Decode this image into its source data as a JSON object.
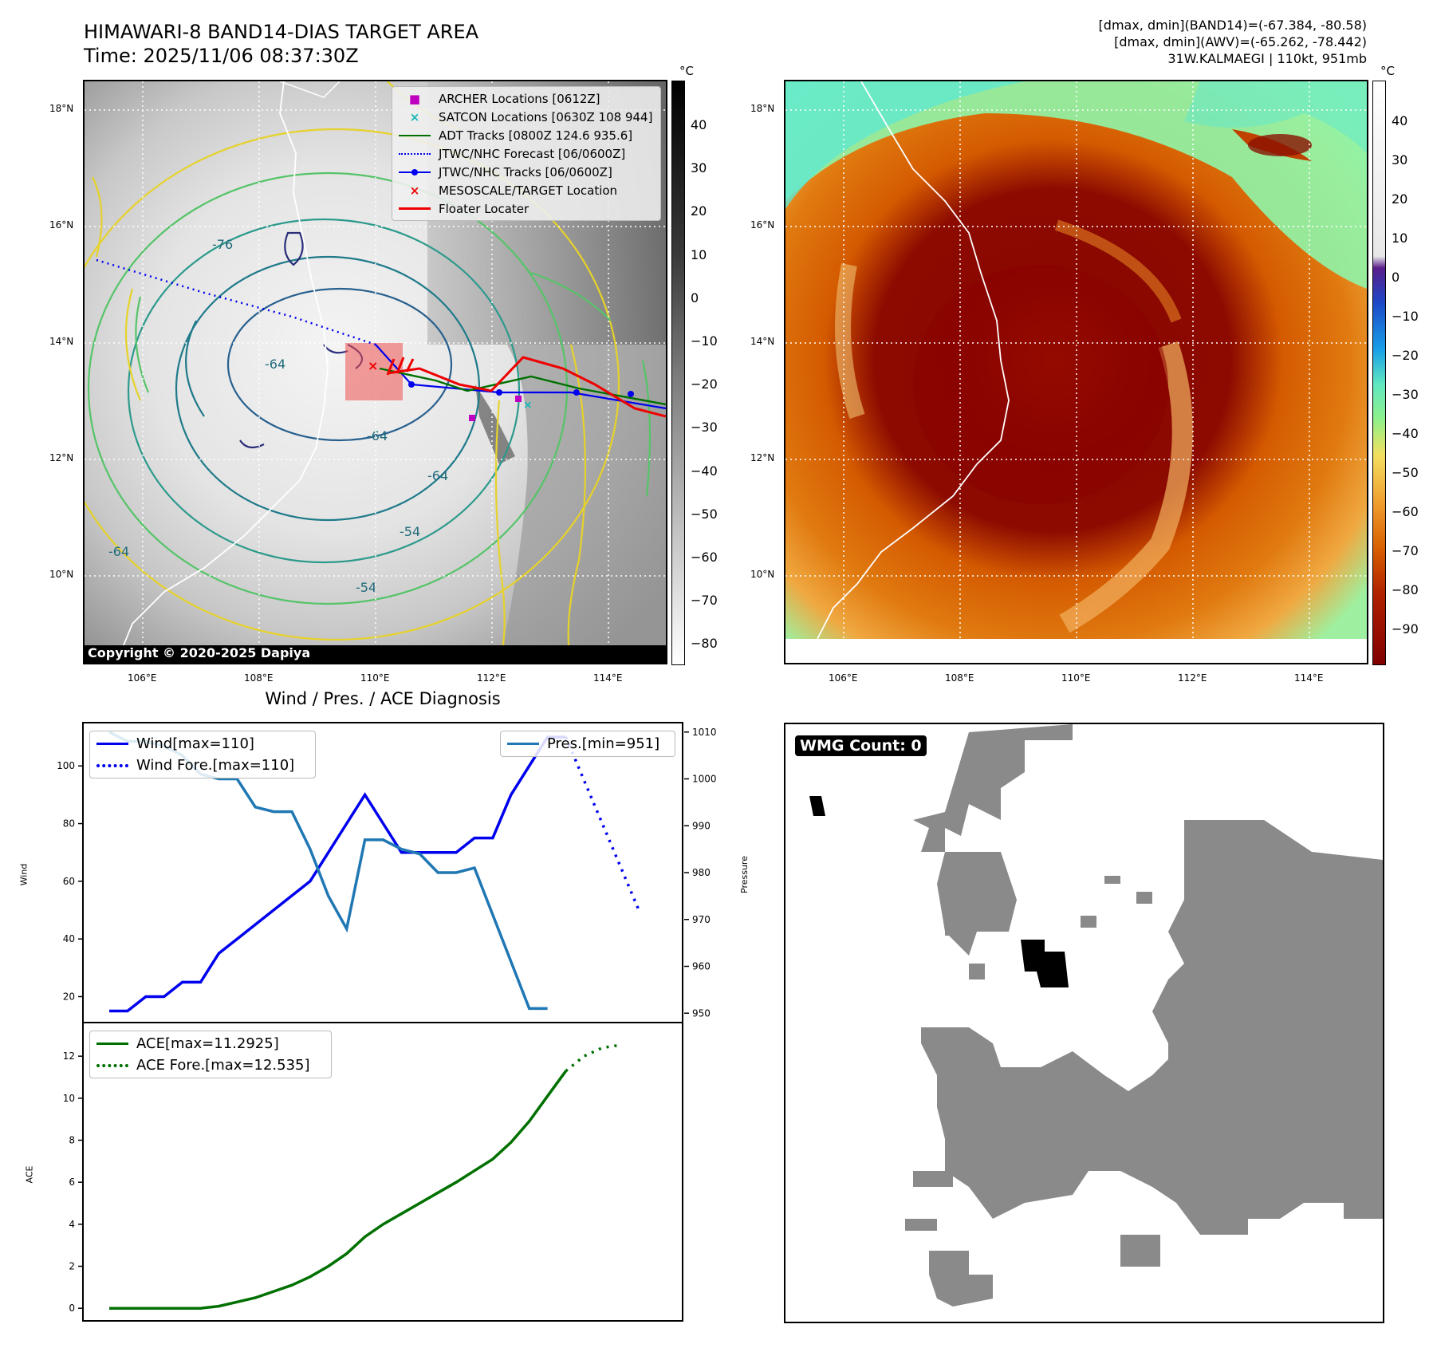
{
  "header": {
    "title_line1": "HIMAWARI-8 BAND14-DIAS TARGET AREA",
    "title_line2": "Time: 2025/11/06 08:37:30Z",
    "info_line1": "[dmax, dmin](BAND14)=(-67.384, -80.58)",
    "info_line2": "[dmax, dmin](AWV)=(-65.262, -78.442)",
    "info_line3": "31W.KALMAEGI | 110kt, 951mb"
  },
  "map_left": {
    "copyright": "Copyright © 2020-2025 Dapiya",
    "lat_ticks": [
      "18°N",
      "16°N",
      "14°N",
      "12°N",
      "10°N"
    ],
    "lon_ticks": [
      "106°E",
      "108°E",
      "110°E",
      "112°E",
      "114°E"
    ],
    "colorbar_unit": "°C",
    "colorbar_ticks": [
      "40",
      "30",
      "20",
      "10",
      "0",
      "−10",
      "−20",
      "−30",
      "−40",
      "−50",
      "−60",
      "−70",
      "−80"
    ],
    "contour_labels": [
      "-64",
      "-64",
      "-64",
      "-54",
      "-64",
      "-54",
      "-76"
    ],
    "legend": [
      {
        "label": "ARCHER Locations [0612Z]",
        "color": "#c000c0",
        "marker": "square"
      },
      {
        "label": "SATCON Locations [0630Z 108 944]",
        "color": "#17b8b8",
        "marker": "x"
      },
      {
        "label": "ADT Tracks [0800Z 124.6 935.6]",
        "color": "#007000",
        "marker": "line"
      },
      {
        "label": "JTWC/NHC Forecast [06/0600Z]",
        "color": "#0000ee",
        "marker": "dotted"
      },
      {
        "label": "JTWC/NHC Tracks [06/0600Z]",
        "color": "#0000ee",
        "marker": "line-dot"
      },
      {
        "label": "MESOSCALE/TARGET Location",
        "color": "#ee0000",
        "marker": "x"
      },
      {
        "label": "Floater Locater",
        "color": "#ee0000",
        "marker": "line"
      }
    ]
  },
  "map_right": {
    "lat_ticks": [
      "18°N",
      "16°N",
      "14°N",
      "12°N",
      "10°N"
    ],
    "lon_ticks": [
      "106°E",
      "108°E",
      "110°E",
      "112°E",
      "114°E"
    ],
    "colorbar_unit": "°C",
    "colorbar_ticks": [
      "40",
      "30",
      "20",
      "10",
      "0",
      "−10",
      "−20",
      "−30",
      "−40",
      "−50",
      "−60",
      "−70",
      "−80",
      "−90"
    ]
  },
  "diagnosis": {
    "title": "Wind / Pres. / ACE Diagnosis",
    "legend_wind": "Wind[max=110]",
    "legend_wind_fore": "Wind Fore.[max=110]",
    "legend_pres": "Pres.[min=951]",
    "legend_ace": "ACE[max=11.2925]",
    "legend_ace_fore": "ACE Fore.[max=12.535]",
    "ylabel_wind": "Wind",
    "ylabel_pres": "Pressure",
    "ylabel_ace": "ACE",
    "wind_ticks": [
      "100",
      "80",
      "60",
      "40",
      "20"
    ],
    "pres_ticks": [
      "1010",
      "1000",
      "990",
      "980",
      "970",
      "960",
      "950"
    ],
    "ace_ticks": [
      "12",
      "10",
      "8",
      "6",
      "4",
      "2",
      "0"
    ]
  },
  "wmg": {
    "label": "WMG Count: 0"
  },
  "chart_data": [
    {
      "type": "line",
      "title": "Wind / Pres. / ACE Diagnosis",
      "ylabel": "Wind",
      "ylim": [
        11,
        115
      ],
      "x": [
        0,
        1,
        2,
        3,
        4,
        5,
        6,
        7,
        8,
        9,
        10,
        11,
        12,
        13,
        14,
        15,
        16,
        17,
        18,
        19,
        20,
        21,
        22,
        23,
        24,
        25,
        26,
        27,
        28,
        29
      ],
      "series": [
        {
          "name": "Wind[max=110]",
          "values": [
            15,
            15,
            20,
            20,
            25,
            25,
            35,
            40,
            45,
            50,
            55,
            60,
            70,
            80,
            90,
            80,
            70,
            70,
            70,
            70,
            75,
            75,
            90,
            100,
            110,
            110,
            null,
            null,
            null,
            null
          ]
        },
        {
          "name": "Wind Fore.[max=110]",
          "values": [
            null,
            null,
            null,
            null,
            null,
            null,
            null,
            null,
            null,
            null,
            null,
            null,
            null,
            null,
            null,
            null,
            null,
            null,
            null,
            null,
            null,
            null,
            null,
            null,
            null,
            110,
            95,
            80,
            65,
            50
          ]
        }
      ]
    },
    {
      "type": "line",
      "ylabel": "Pressure",
      "ylim": [
        948,
        1012
      ],
      "x": [
        0,
        1,
        2,
        3,
        4,
        5,
        6,
        7,
        8,
        9,
        10,
        11,
        12,
        13,
        14,
        15,
        16,
        17,
        18,
        19,
        20,
        21,
        22,
        23,
        24,
        25
      ],
      "series": [
        {
          "name": "Pres.[min=951]",
          "values": [
            1010,
            1008,
            1008,
            1007,
            1005,
            1001,
            1000,
            1000,
            994,
            993,
            993,
            985,
            975,
            968,
            987,
            987,
            985,
            984,
            980,
            980,
            981,
            971,
            961,
            951,
            951,
            null
          ]
        }
      ]
    },
    {
      "type": "line",
      "ylabel": "ACE",
      "ylim": [
        -0.6,
        13.6
      ],
      "x": [
        0,
        1,
        2,
        3,
        4,
        5,
        6,
        7,
        8,
        9,
        10,
        11,
        12,
        13,
        14,
        15,
        16,
        17,
        18,
        19,
        20,
        21,
        22,
        23,
        24,
        25,
        26,
        27,
        28
      ],
      "series": [
        {
          "name": "ACE[max=11.2925]",
          "values": [
            0,
            0,
            0,
            0,
            0,
            0,
            0.1,
            0.3,
            0.5,
            0.8,
            1.1,
            1.5,
            2,
            2.6,
            3.4,
            4,
            4.5,
            5,
            5.5,
            6,
            6.55,
            7.1,
            7.9,
            8.9,
            10.1,
            11.29,
            null,
            null,
            null
          ]
        },
        {
          "name": "ACE Fore.[max=12.535]",
          "values": [
            null,
            null,
            null,
            null,
            null,
            null,
            null,
            null,
            null,
            null,
            null,
            null,
            null,
            null,
            null,
            null,
            null,
            null,
            null,
            null,
            null,
            null,
            null,
            null,
            null,
            11.29,
            12,
            12.4,
            12.535
          ]
        }
      ]
    }
  ]
}
